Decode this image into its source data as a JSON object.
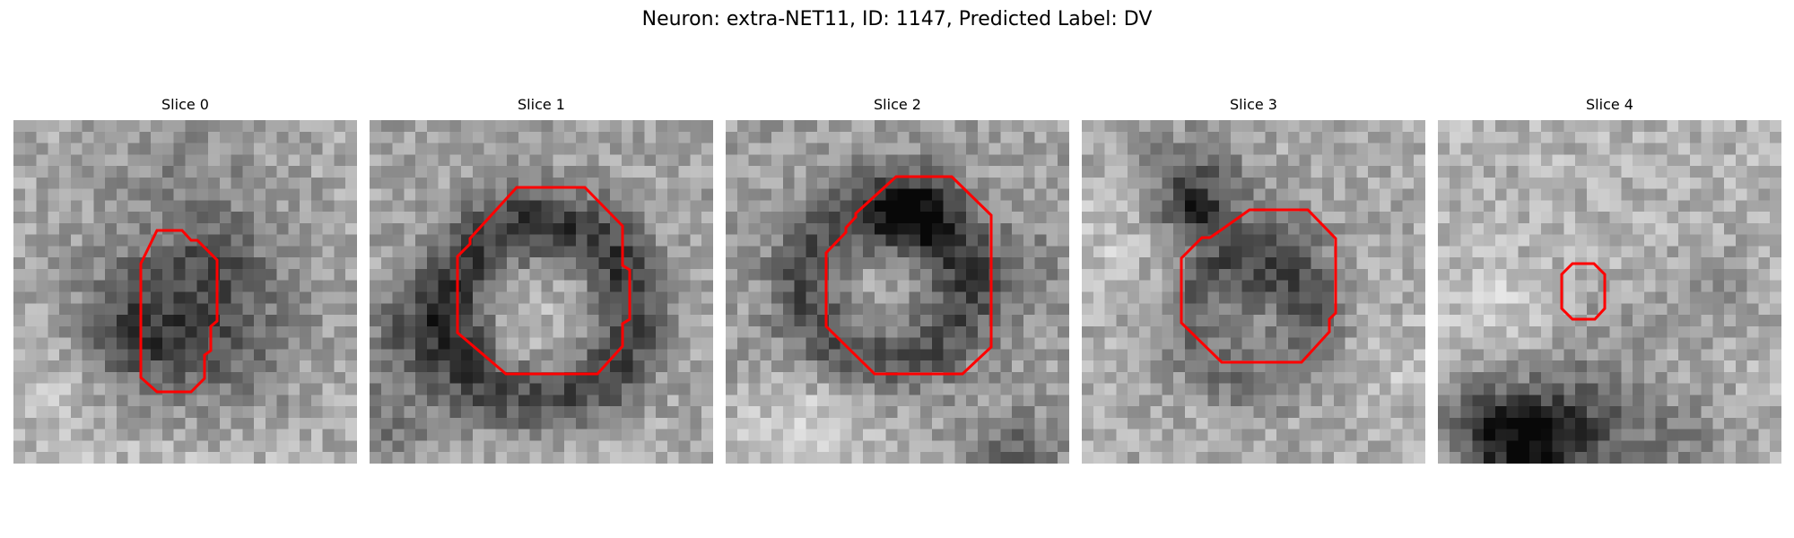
{
  "figure": {
    "title": "Neuron: extra-NET11, ID: 1147, Predicted Label: DV"
  },
  "colors": {
    "contour": "#ff0000",
    "background": "#ffffff"
  },
  "image_style": "grayscale 30x30 pixelated patches",
  "slices": [
    {
      "label": "Slice 0"
    },
    {
      "label": "Slice 1"
    },
    {
      "label": "Slice 2"
    },
    {
      "label": "Slice 3"
    },
    {
      "label": "Slice 4"
    }
  ]
}
